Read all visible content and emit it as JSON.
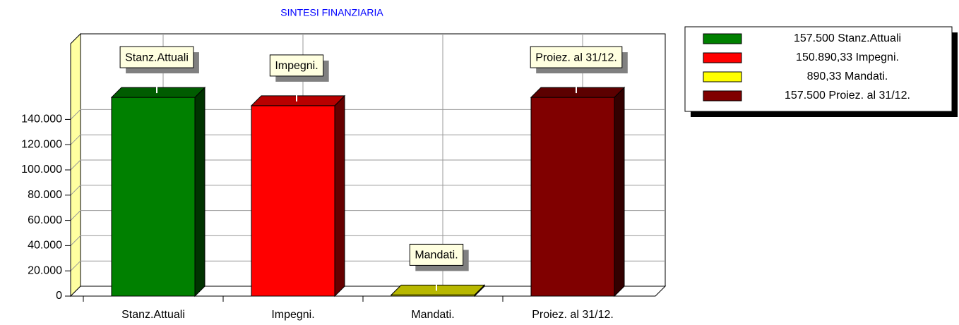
{
  "chart_data": {
    "type": "bar",
    "title": "SINTESI FINANZIARIA",
    "categories": [
      "Stanz.Attuali",
      "Impegni.",
      "Mandati.",
      "Proiez. al 31/12."
    ],
    "values": [
      157500,
      150890.33,
      890.33,
      157500
    ],
    "value_labels": [
      "157.500",
      "150.890,33",
      "890,33",
      "157.500"
    ],
    "colors": [
      "#008000",
      "#ff0000",
      "#ffff00",
      "#800000"
    ],
    "ylim": [
      0,
      200000
    ],
    "yticks": [
      0,
      {
        "value": 20000,
        "label": "20.000"
      },
      {
        "value": 40000,
        "label": "40.000"
      },
      {
        "value": 60000,
        "label": "60.000"
      },
      {
        "value": 80000,
        "label": "80.000"
      },
      {
        "value": 100000,
        "label": "100.000"
      },
      {
        "value": 120000,
        "label": "120.000"
      },
      {
        "value": 140000,
        "label": "140.000"
      }
    ],
    "grid": true,
    "legend": "top-right"
  }
}
